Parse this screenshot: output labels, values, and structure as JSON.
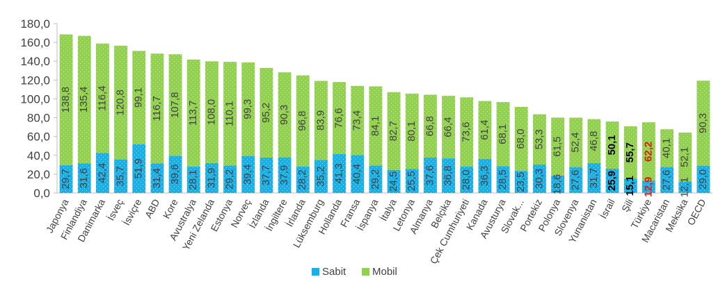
{
  "chart_data": {
    "type": "bar",
    "stacked": true,
    "categories": [
      "Japonya",
      "Finlandiya",
      "Danimarka",
      "İsveç",
      "İsviçre",
      "ABD",
      "Kore",
      "Avustralya",
      "Yeni Zelanda",
      "Estonya",
      "Norveç",
      "İzlanda",
      "İngiltere",
      "İrlanda",
      "Lüksemburg",
      "Hollanda",
      "Fransa",
      "İspanya",
      "İtalya",
      "Letonya",
      "Almanya",
      "Belçika",
      "Çek Cumhuriyeti",
      "Kanada",
      "Avusturya",
      "Slovak...",
      "Portekiz",
      "Polonya",
      "Slovenya",
      "Yunanistan",
      "İsrail",
      "Şili",
      "Türkiye",
      "Macaristan",
      "Meksika",
      "OECD"
    ],
    "series": [
      {
        "name": "Sabit",
        "color": "#1aafe6",
        "values": [
          29.7,
          31.6,
          42.4,
          35.7,
          51.9,
          31.4,
          39.6,
          28.1,
          31.9,
          29.2,
          39.4,
          37.7,
          37.9,
          28.2,
          35.2,
          41.3,
          40.4,
          29.2,
          24.5,
          25.5,
          37.6,
          36.8,
          28.0,
          36.3,
          28.5,
          23.5,
          30.3,
          18.6,
          27.6,
          31.7,
          25.9,
          15.1,
          12.9,
          27.6,
          12.1,
          29.0
        ],
        "labels": [
          "29,7",
          "31,6",
          "42,4",
          "35,7",
          "51,9",
          "31,4",
          "39,6",
          "28,1",
          "31,9",
          "29,2",
          "39,4",
          "37,7",
          "37,9",
          "28,2",
          "35,2",
          "41,3",
          "40,4",
          "29,2",
          "24,5",
          "25,5",
          "37,6",
          "36,8",
          "28,0",
          "36,3",
          "28,5",
          "23,5",
          "30,3",
          "18,6",
          "27,6",
          "31,7",
          "25,9",
          "15,1",
          "12,9",
          "27,6",
          "12,1",
          "29,0"
        ]
      },
      {
        "name": "Mobil",
        "color": "#92d050",
        "values": [
          138.8,
          135.4,
          116.4,
          120.8,
          99.1,
          116.7,
          107.8,
          113.7,
          108.0,
          110.1,
          99.3,
          95.2,
          90.3,
          96.8,
          83.9,
          76.6,
          73.4,
          84.1,
          82.7,
          80.1,
          66.8,
          66.4,
          73.6,
          61.4,
          68.1,
          68.0,
          53.3,
          61.5,
          52.4,
          46.8,
          50.1,
          55.7,
          62.2,
          40.1,
          52.1,
          90.3
        ],
        "labels": [
          "138,8",
          "135,4",
          "116,4",
          "120,8",
          "99,1",
          "116,7",
          "107,8",
          "113,7",
          "108,0",
          "110,1",
          "99,3",
          "95,2",
          "90,3",
          "96,8",
          "83,9",
          "76,6",
          "73,4",
          "84,1",
          "82,7",
          "80,1",
          "66,8",
          "66,4",
          "73,6",
          "61,4",
          "68,1",
          "68,0",
          "53,3",
          "61,5",
          "52,4",
          "46,8",
          "50,1",
          "55,7",
          "62,2",
          "40,1",
          "52,1",
          "90,3"
        ]
      }
    ],
    "highlight": {
      "İsrail": {
        "color": "#000000",
        "bold": true
      },
      "Şili": {
        "color": "#000000",
        "bold": true
      },
      "Türkiye": {
        "color": "#e0190f",
        "bold": true
      }
    },
    "ylim": [
      0,
      180
    ],
    "yticks": [
      "0,0",
      "20,0",
      "40,0",
      "60,0",
      "80,0",
      "100,0",
      "120,0",
      "140,0",
      "160,0",
      "180,0"
    ],
    "grid": false,
    "legend_position": "bottom",
    "title": "",
    "xlabel": "",
    "ylabel": ""
  }
}
